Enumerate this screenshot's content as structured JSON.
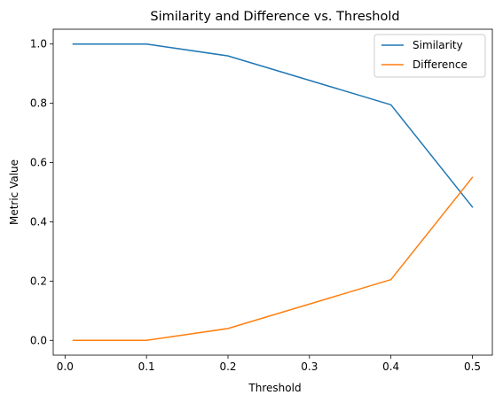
{
  "chart_data": {
    "type": "line",
    "title": "Similarity and Difference vs. Threshold",
    "xlabel": "Threshold",
    "ylabel": "Metric Value",
    "x": [
      0.01,
      0.1,
      0.2,
      0.4,
      0.5
    ],
    "series": [
      {
        "name": "Similarity",
        "color": "#1f77b4",
        "values": [
          1.0,
          1.0,
          0.96,
          0.795,
          0.45
        ]
      },
      {
        "name": "Difference",
        "color": "#ff7f0e",
        "values": [
          0.0,
          0.0,
          0.04,
          0.205,
          0.55
        ]
      }
    ],
    "xlim": [
      -0.0145,
      0.5245
    ],
    "ylim": [
      -0.05,
      1.05
    ],
    "xticks": [
      0.0,
      0.1,
      0.2,
      0.3,
      0.4,
      0.5
    ],
    "xtick_labels": [
      "0.0",
      "0.1",
      "0.2",
      "0.3",
      "0.4",
      "0.5"
    ],
    "yticks": [
      0.0,
      0.2,
      0.4,
      0.6,
      0.8,
      1.0
    ],
    "ytick_labels": [
      "0.0",
      "0.2",
      "0.4",
      "0.6",
      "0.8",
      "1.0"
    ],
    "grid": false,
    "legend_position": "upper right"
  }
}
